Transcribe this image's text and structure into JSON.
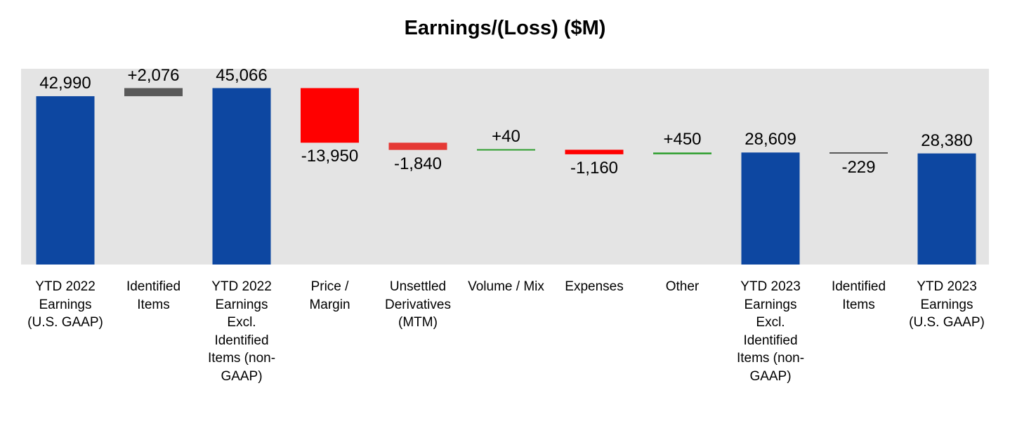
{
  "chart_data": {
    "type": "bar",
    "title": "Earnings/(Loss) ($M)",
    "xlabel": "",
    "ylabel": "",
    "ylim": [
      0,
      50000
    ],
    "grid": false,
    "legend": "none",
    "categories": [
      "YTD 2022 Earnings (U.S. GAAP)",
      "Identified Items",
      "YTD 2022 Earnings Excl. Identified Items (non-GAAP)",
      "Price / Margin",
      "Unsettled Derivatives (MTM)",
      "Volume / Mix",
      "Expenses",
      "Other",
      "YTD 2023 Earnings Excl. Identified Items (non-GAAP)",
      "Identified Items",
      "YTD 2023 Earnings (U.S. GAAP)"
    ],
    "values": [
      42990,
      2076,
      45066,
      -13950,
      -1840,
      40,
      -1160,
      450,
      28609,
      -229,
      28380
    ],
    "bar_kinds": [
      "total",
      "delta",
      "total",
      "delta",
      "delta",
      "delta",
      "delta",
      "delta",
      "total",
      "delta",
      "total"
    ],
    "value_labels": [
      "42,990",
      "+2,076",
      "45,066",
      "-13,950",
      "-1,840",
      "+40",
      "-1,160",
      "+450",
      "28,609",
      "-229",
      "28,380"
    ],
    "colors": [
      "#0d47a1",
      "#595959",
      "#0d47a1",
      "#ff0000",
      "#e53935",
      "#2e9e2e",
      "#ff0000",
      "#2e9e2e",
      "#0d47a1",
      "#595959",
      "#0d47a1"
    ]
  }
}
